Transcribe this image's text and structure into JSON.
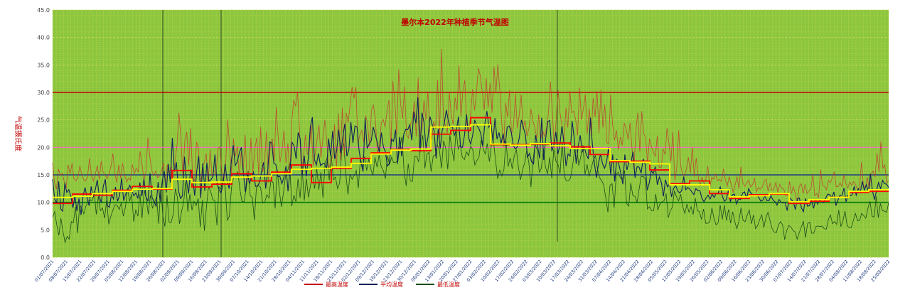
{
  "chart_data": {
    "type": "line",
    "title": "墨尔本2022年种植季节气温图",
    "ylabel": "气温摄氏度",
    "ylim": [
      0,
      45
    ],
    "yticks": [
      "0.0",
      "5.0",
      "10.0",
      "15.0",
      "20.0",
      "25.0",
      "30.0",
      "35.0",
      "40.0",
      "45.0"
    ],
    "grid": true,
    "legend_position": "bottom",
    "x_tick_labels": [
      "01/07/2021",
      "08/07/2021",
      "15/07/2021",
      "22/07/2021",
      "29/07/2021",
      "05/08/2021",
      "12/08/2021",
      "19/08/2021",
      "26/08/2021",
      "02/09/2021",
      "09/09/2021",
      "16/09/2021",
      "23/09/2021",
      "30/09/2021",
      "07/10/2021",
      "14/10/2021",
      "21/10/2021",
      "28/10/2021",
      "04/11/2021",
      "11/11/2021",
      "18/11/2021",
      "25/11/2021",
      "02/12/2021",
      "09/12/2021",
      "16/12/2021",
      "23/12/2021",
      "30/12/2021",
      "06/01/2022",
      "13/01/2022",
      "20/01/2022",
      "27/01/2022",
      "03/02/2022",
      "10/02/2022",
      "17/02/2022",
      "24/02/2022",
      "03/03/2022",
      "10/03/2022",
      "17/03/2022",
      "24/03/2022",
      "31/03/2022",
      "07/04/2022",
      "14/04/2022",
      "21/04/2022",
      "28/04/2022",
      "05/05/2022",
      "12/05/2022",
      "19/05/2022",
      "26/05/2022",
      "02/06/2022",
      "09/06/2022",
      "16/06/2022",
      "23/06/2022",
      "30/06/2022",
      "07/07/2022",
      "14/07/2022",
      "21/07/2022",
      "28/07/2022",
      "04/08/2022",
      "11/08/2022",
      "18/08/2022",
      "25/08/2022"
    ],
    "reference_lines": [
      {
        "y": 30,
        "color": "#c00000"
      },
      {
        "y": 20,
        "color": "#ff66cc"
      },
      {
        "y": 15,
        "color": "#1f3b82"
      },
      {
        "y": 10,
        "color": "#0a7a0a"
      }
    ],
    "legend": [
      "最高温度",
      "平均温度",
      "最低温度"
    ],
    "step_series": [
      {
        "color": "#ff0000",
        "values": [
          9.8,
          11.5,
          11.3,
          12.2,
          12.9,
          12.4,
          15.8,
          12.8,
          13.3,
          15.2,
          13.9,
          15.5,
          16.8,
          13.6,
          16.2,
          18.0,
          19.0,
          19.6,
          19.4,
          22.4,
          23.1,
          25.4,
          20.5,
          20.5,
          20.6,
          20.8,
          20.1,
          18.7,
          17.4,
          17.5,
          15.9,
          13.4,
          13.9,
          11.6,
          10.7,
          11.4,
          11.5,
          9.8,
          10.2,
          10.9,
          11.8,
          12.0
        ]
      },
      {
        "color": "#ffff00",
        "values": [
          10.9,
          11.1,
          11.6,
          12.0,
          12.4,
          12.5,
          14.2,
          13.6,
          13.7,
          14.6,
          14.8,
          15.2,
          16.0,
          16.2,
          16.4,
          17.1,
          18.8,
          19.5,
          19.7,
          23.7,
          23.8,
          24.1,
          20.6,
          20.4,
          20.7,
          20.3,
          19.8,
          19.8,
          17.6,
          17.3,
          17.0,
          13.2,
          13.2,
          12.3,
          11.0,
          11.2,
          11.6,
          10.1,
          10.5,
          10.9,
          12.0,
          12.3
        ]
      }
    ],
    "max_temp": [
      17.2,
      13.5,
      12.4,
      16.1,
      14.9,
      15.3,
      13.7,
      12.6,
      16.8,
      15.2,
      17.1,
      14.3,
      13.9,
      14.5,
      16.6,
      15.1,
      14.1,
      13.9,
      14.7,
      18.1,
      14.8,
      13.9,
      15.2,
      16.7,
      14.2,
      17.5,
      15.5,
      15.0,
      14.3,
      15.2,
      16.5,
      18.9,
      15.4,
      13.6,
      16.8,
      14.4,
      17.1,
      15.0,
      13.7,
      14.4,
      14.0,
      16.9,
      15.2,
      16.2,
      15.5,
      19.3,
      16.9,
      14.1,
      15.6,
      21.8,
      18.4,
      15.8,
      14.9,
      15.7,
      14.5,
      14.8,
      15.7,
      17.2,
      13.6,
      16.9,
      15.2,
      16.7,
      14.5,
      17.6,
      20.5,
      26.3,
      21.6,
      14.8,
      21.3,
      22.8,
      16.7,
      23.5,
      14.6,
      13.8,
      21.0,
      19.9,
      12.9,
      16.4,
      17.2,
      18.9,
      13.3,
      19.6,
      14.8,
      15.8,
      14.9,
      19.8,
      20.1,
      15.7,
      13.9,
      16.8,
      25.1,
      20.5,
      15.3,
      21.6,
      18.4,
      20.2,
      14.6,
      19.2,
      15.6,
      22.3,
      13.7,
      15.7,
      21.7,
      15.5,
      19.7,
      21.8,
      15.0,
      23.7,
      15.5,
      17.4,
      22.9,
      13.6,
      20.7,
      21.6,
      17.5,
      27.3,
      21.9,
      17.3,
      19.5,
      23.1,
      17.1,
      20.7,
      15.1,
      24.8,
      28.6,
      27.5,
      30.1,
      23.2,
      15.4,
      18.0,
      22.3,
      18.8,
      19.3,
      24.1,
      16.6,
      18.8,
      21.4,
      24.1,
      18.1,
      21.7,
      25.0,
      21.1,
      16.1,
      17.3,
      18.3,
      24.2,
      16.0,
      26.2,
      17.7,
      27.2,
      18.5,
      26.3,
      24.5,
      27.6,
      31.0,
      28.9,
      31.0,
      20.7,
      22.2,
      23.1,
      21.0,
      25.8,
      24.3,
      20.2,
      26.8,
      27.7,
      25.1,
      19.0,
      20.0,
      24.4,
      25.1,
      23.7,
      26.6,
      28.6,
      20.0,
      32.1,
      28.4,
      22.3,
      34.2,
      27.9,
      25.2,
      31.1,
      22.3,
      21.7,
      24.1,
      24.9,
      28.4,
      22.0,
      32.7,
      21.9,
      23.4,
      28.6,
      25.0,
      30.2,
      22.8,
      21.5,
      24.7,
      23.4,
      32.3,
      21.6,
      37.9,
      25.3,
      24.0,
      22.6,
      30.0,
      26.0,
      24.1,
      29.1,
      26.7,
      35.0,
      25.6,
      30.3,
      32.2,
      24.3,
      22.7,
      26.1,
      30.6,
      26.7,
      30.0,
      34.4,
      33.0,
      30.0,
      26.8,
      32.6,
      27.2,
      31.7,
      26.3,
      34.7,
      30.0,
      35.1,
      30.5,
      24.5,
      20.1,
      28.1,
      25.5,
      30.4,
      22.5,
      23.5,
      29.7,
      23.5,
      25.9,
      29.6,
      23.3,
      24.9,
      22.0,
      23.5,
      27.0,
      24.8,
      23.6,
      21.7,
      26.0,
      21.3,
      23.1,
      22.0,
      23.5,
      26.3,
      32.0,
      26.8,
      19.8,
      25.3,
      30.4,
      26.2,
      24.0,
      20.6,
      27.2,
      23.6,
      30.3,
      26.3,
      26.6,
      25.1,
      22.2,
      30.9,
      25.0,
      27.1,
      29.6,
      22.5,
      27.1,
      22.2,
      29.0,
      25.5,
      30.3,
      22.6,
      30.5,
      23.6,
      27.8,
      20.9,
      20.6,
      29.6,
      24.1,
      21.3,
      23.1,
      19.6,
      21.9,
      20.4,
      24.4,
      23.4,
      21.4,
      24.5,
      19.8,
      16.0,
      23.3,
      26.3,
      19.2,
      26.6,
      22.5,
      21.7,
      17.1,
      21.6,
      20.1,
      19.1,
      18.4,
      22.1,
      16.4,
      16.3,
      19.7,
      18.7,
      23.5,
      20.7,
      17.4,
      22.8,
      13.9,
      16.2,
      23.1,
      16.7,
      15.0,
      14.8,
      16.1,
      18.2,
      15.3,
      20.0,
      14.7,
      18.1,
      14.8,
      12.9,
      14.6,
      13.4,
      14.3,
      16.6,
      12.6,
      14.6,
      14.2,
      15.2,
      13.9,
      14.2,
      13.8,
      16.1,
      14.1,
      13.0,
      14.7,
      13.3,
      11.8,
      13.1,
      14.7,
      12.5,
      16.5,
      13.5,
      12.9,
      13.5,
      14.1,
      12.8,
      13.2,
      14.4,
      11.9,
      12.7,
      12.4,
      12.8,
      13.9,
      14.2,
      12.0,
      13.5,
      12.2,
      12.5,
      13.6,
      11.8,
      13.3,
      12.6,
      12.5,
      11.2,
      11.3,
      13.8,
      11.6,
      12.9,
      11.5,
      10.1,
      12.9,
      13.4,
      11.6,
      13.3,
      11.6,
      12.1,
      12.4,
      15.1,
      11.2,
      11.6,
      10.9,
      16.0,
      13.0,
      12.9,
      12.3,
      14.0,
      13.6,
      14.4,
      15.6,
      12.8,
      12.9,
      13.5,
      12.9,
      15.0,
      13.4,
      12.6,
      13.7,
      13.1,
      13.8,
      13.2,
      12.3,
      12.5,
      17.3,
      13.1,
      12.7,
      14.6,
      12.4,
      15.1,
      15.7,
      14.6,
      19.0,
      15.6,
      21.1,
      16.2,
      16.8,
      13.6,
      13.9
    ],
    "mean_temp": [
      14.2,
      10.6,
      9.9,
      13.8,
      8.8,
      8.4,
      13.5,
      11.8,
      12.3,
      11.1,
      9.0,
      11.1,
      8.4,
      10.7,
      7.7,
      11.2,
      12.7,
      10.8,
      9.4,
      12.9,
      10.9,
      12.2,
      14.1,
      11.1,
      9.9,
      13.0,
      14.2,
      9.4,
      9.1,
      11.5,
      10.6,
      12.8,
      10.2,
      11.2,
      14.4,
      10.3,
      11.5,
      12.2,
      13.1,
      12.2,
      11.2,
      11.7,
      10.7,
      13.6,
      11.1,
      14.3,
      11.0,
      10.2,
      15.3,
      10.9,
      10.1,
      9.3,
      13.7,
      10.1,
      13.8,
      15.7,
      11.8,
      17.0,
      13.6,
      21.7,
      15.6,
      17.3,
      12.2,
      10.7,
      11.2,
      18.3,
      13.9,
      11.6,
      16.0,
      14.8,
      11.2,
      15.6,
      18.4,
      10.8,
      17.1,
      12.1,
      17.2,
      13.9,
      14.1,
      14.7,
      18.7,
      13.5,
      12.3,
      11.7,
      13.5,
      17.0,
      13.9,
      12.5,
      17.2,
      20.4,
      16.7,
      17.4,
      19.0,
      20.0,
      15.4,
      11.9,
      15.3,
      13.4,
      14.6,
      15.5,
      12.9,
      13.0,
      13.6,
      15.8,
      17.3,
      12.5,
      15.7,
      21.0,
      20.8,
      17.1,
      16.9,
      14.7,
      14.7,
      13.4,
      14.6,
      16.6,
      12.0,
      15.9,
      20.9,
      20.3,
      17.9,
      22.7,
      21.6,
      15.0,
      18.5,
      14.7,
      18.1,
      23.7,
      25.5,
      17.8,
      16.8,
      18.9,
      16.7,
      17.0,
      17.1,
      16.0,
      21.6,
      18.4,
      23.0,
      17.9,
      19.5,
      23.2,
      19.0,
      21.8,
      24.3,
      18.4,
      19.6,
      24.6,
      20.8,
      23.9,
      23.7,
      19.5,
      17.2,
      15.6,
      25.3,
      19.8,
      20.6,
      21.2,
      23.7,
      22.3,
      20.9,
      19.1,
      22.7,
      20.1,
      19.2,
      16.6,
      17.1,
      21.5,
      21.1,
      23.2,
      17.0,
      21.9,
      18.4,
      22.3,
      23.3,
      23.2,
      24.1,
      21.3,
      26.5,
      24.4,
      29.1,
      19.1,
      26.3,
      24.6,
      19.8,
      21.9,
      25.6,
      24.2,
      23.0,
      18.0,
      23.3,
      19.8,
      23.1,
      24.3,
      26.8,
      24.9,
      23.6,
      23.7,
      22.2,
      23.2,
      25.6,
      20.1,
      20.0,
      22.3,
      26.0,
      21.8,
      20.6,
      22.2,
      25.0,
      24.0,
      23.5,
      22.5,
      20.3,
      24.3,
      26.6,
      23.7,
      24.5,
      21.0,
      25.3,
      21.5,
      22.7,
      20.7,
      22.5,
      20.2,
      23.7,
      23.9,
      22.8,
      20.4,
      19.7,
      20.1,
      21.8,
      25.0,
      23.6,
      22.3,
      18.2,
      18.9,
      17.4,
      17.0,
      22.2,
      20.2,
      18.0,
      25.4,
      17.7,
      21.7,
      24.7,
      24.9,
      19.3,
      20.5,
      22.8,
      18.8,
      20.5,
      23.9,
      20.8,
      16.6,
      18.8,
      18.4,
      24.8,
      21.8,
      17.0,
      20.2,
      22.2,
      19.2,
      20.0,
      18.7,
      17.9,
      25.4,
      20.5,
      17.0,
      14.5,
      17.1,
      18.8,
      17.0,
      16.2,
      17.4,
      20.0,
      15.0,
      18.7,
      13.8,
      17.9,
      17.0,
      15.3,
      13.3,
      18.7,
      15.9,
      17.3,
      17.2,
      19.2,
      14.5,
      16.5,
      16.4,
      15.3,
      17.9,
      16.9,
      12.2,
      13.5,
      15.8,
      15.2,
      16.5,
      13.2,
      14.6,
      13.6,
      11.1,
      14.1,
      12.8,
      13.4,
      11.0,
      12.5,
      13.1,
      12.1,
      11.7,
      12.1,
      14.7,
      12.3,
      12.7,
      12.4,
      11.9,
      11.4,
      12.5,
      12.1,
      12.1,
      10.7,
      10.1,
      10.8,
      11.3,
      10.6,
      11.5,
      10.9,
      11.6,
      11.7,
      12.8,
      11.2,
      10.2,
      10.5,
      12.2,
      10.1,
      11.4,
      11.5,
      9.7,
      10.6,
      10.5,
      11.7,
      11.9,
      10.7,
      12.5,
      11.7,
      11.4,
      11.3,
      11.4,
      10.9,
      10.2,
      10.4,
      11.2,
      10.3,
      10.3,
      11.2,
      10.4,
      10.1,
      9.5,
      10.5,
      10.0,
      9.9,
      10.0,
      8.5,
      10.9,
      10.5,
      10.1,
      8.7,
      10.6,
      10.8,
      9.0,
      8.3,
      10.7,
      9.3,
      9.4,
      10.3,
      8.9,
      10.5,
      9.7,
      10.5,
      10.1,
      10.0,
      10.8,
      11.5,
      11.4,
      10.8,
      11.9,
      9.4,
      10.4,
      11.3,
      11.3,
      12.6,
      10.1,
      11.3,
      11.2,
      11.4,
      12.9,
      11.3,
      12.5,
      11.8,
      13.8,
      12.2,
      13.2,
      11.9,
      15.2,
      12.1,
      10.5,
      12.1,
      13.6,
      12.5,
      14.0,
      13.4,
      13.3,
      12.7
    ],
    "min_temp": [
      7.3,
      8.3,
      5.9,
      4.0,
      7.1,
      4.7,
      2.7,
      3.8,
      3.3,
      6.5,
      6.3,
      9.2,
      4.4,
      9.5,
      9.0,
      7.9,
      9.3,
      10.2,
      10.4,
      10.3,
      12.0,
      7.8,
      11.1,
      8.5,
      9.0,
      7.1,
      10.4,
      6.0,
      7.5,
      8.6,
      9.6,
      9.5,
      8.7,
      9.9,
      7.5,
      9.1,
      12.6,
      10.2,
      11.5,
      6.5,
      8.6,
      7.5,
      11.5,
      7.1,
      12.2,
      10.8,
      7.8,
      11.3,
      8.9,
      10.0,
      11.0,
      6.1,
      12.8,
      7.5,
      5.6,
      11.3,
      6.4,
      6.3,
      7.9,
      12.5,
      10.9,
      6.1,
      8.3,
      10.0,
      13.8,
      8.3,
      11.5,
      8.6,
      10.2,
      9.4,
      10.7,
      5.5,
      10.4,
      4.8,
      9.4,
      12.8,
      12.0,
      10.5,
      10.3,
      5.8,
      12.8,
      12.4,
      14.6,
      12.7,
      6.7,
      7.5,
      12.7,
      14.6,
      14.6,
      15.6,
      12.6,
      10.2,
      10.1,
      12.2,
      15.7,
      11.2,
      10.9,
      6.8,
      12.7,
      13.1,
      12.7,
      9.9,
      10.0,
      11.4,
      10.8,
      14.1,
      13.6,
      8.9,
      16.0,
      12.1,
      9.2,
      11.8,
      14.8,
      15.8,
      17.1,
      9.3,
      11.3,
      10.1,
      14.3,
      10.8,
      16.2,
      10.3,
      14.4,
      10.9,
      13.1,
      15.1,
      12.5,
      16.2,
      12.3,
      15.5,
      10.8,
      17.2,
      18.1,
      14.0,
      18.6,
      14.1,
      14.6,
      12.5,
      13.5,
      19.4,
      20.8,
      15.2,
      11.4,
      15.1,
      14.2,
      14.9,
      15.8,
      12.6,
      18.0,
      16.4,
      18.3,
      15.8,
      17.9,
      16.1,
      14.9,
      18.2,
      16.4,
      18.6,
      16.5,
      15.8,
      14.3,
      18.5,
      16.9,
      18.2,
      17.2,
      17.3,
      17.6,
      20.0,
      22.0,
      15.6,
      13.0,
      17.0,
      13.9,
      13.8,
      18.3,
      18.4,
      17.4,
      20.0,
      22.2,
      16.2,
      18.8,
      19.1,
      15.6,
      18.4,
      18.6,
      20.5,
      19.5,
      16.2,
      21.2,
      19.9,
      16.0,
      22.2,
      19.7,
      17.5,
      23.3,
      19.7,
      20.5,
      18.2,
      17.8,
      19.2,
      18.5,
      20.2,
      19.6,
      16.8,
      17.6,
      18.2,
      21.3,
      19.8,
      18.8,
      20.7,
      17.4,
      20.5,
      21.0,
      17.6,
      14.3,
      15.9,
      14.8,
      16.0,
      21.3,
      16.5,
      18.1,
      16.1,
      18.5,
      19.6,
      16.3,
      14.1,
      16.0,
      17.2,
      19.6,
      17.2,
      12.8,
      17.8,
      20.5,
      19.6,
      15.5,
      16.2,
      19.8,
      16.4,
      15.2,
      18.2,
      14.4,
      19.7,
      17.5,
      16.9,
      15.2,
      21.1,
      14.9,
      13.9,
      13.9,
      14.4,
      16.6,
      19.6,
      19.9,
      16.7,
      18.4,
      20.4,
      15.1,
      16.9,
      14.7,
      16.3,
      17.6,
      18.5,
      16.0,
      14.5,
      13.9,
      13.2,
      10.7,
      8.2,
      13.1,
      13.4,
      9.0,
      15.1,
      15.5,
      14.4,
      14.2,
      15.8,
      9.8,
      9.3,
      13.5,
      11.2,
      11.1,
      9.9,
      12.4,
      14.7,
      14.7,
      14.3,
      8.8,
      9.2,
      8.5,
      8.5,
      11.5,
      8.6,
      9.7,
      10.1,
      10.3,
      11.6,
      7.2,
      8.5,
      9.1,
      12.1,
      11.0,
      10.3,
      11.5,
      9.2,
      8.0,
      9.7,
      8.2,
      9.2,
      7.8,
      10.8,
      8.5,
      8.3,
      6.9,
      8.8,
      6.2,
      6.2,
      6.4,
      9.0,
      7.1,
      5.9,
      6.3,
      9.5,
      6.9,
      9.5,
      6.7,
      8.7,
      6.2,
      8.3,
      6.5,
      5.2,
      6.6,
      9.0,
      6.7,
      6.5,
      7.7,
      8.6,
      6.1,
      7.7,
      5.2,
      5.8,
      6.9,
      7.7,
      5.4,
      7.3,
      8.2,
      6.6,
      5.2,
      4.6,
      4.5,
      5.9,
      6.5,
      5.9,
      3.2,
      4.9,
      5.8,
      5.5,
      4.9,
      4.6,
      3.3,
      4.5,
      5.5,
      6.6,
      3.6,
      6.1,
      6.4,
      4.4,
      4.4,
      5.6,
      5.7,
      5.6,
      5.7,
      5.2,
      5.1,
      6.9,
      7.7,
      6.1,
      6.5,
      6.0,
      8.6,
      5.6,
      6.6,
      8.4,
      5.8,
      5.4,
      5.4,
      6.7,
      8.0,
      6.7,
      6.7,
      8.0,
      7.6,
      7.1,
      8.9,
      10.2,
      7.5,
      7.3,
      11.1,
      7.2,
      9.8,
      8.5,
      8.4,
      8.2,
      9.9
    ]
  }
}
